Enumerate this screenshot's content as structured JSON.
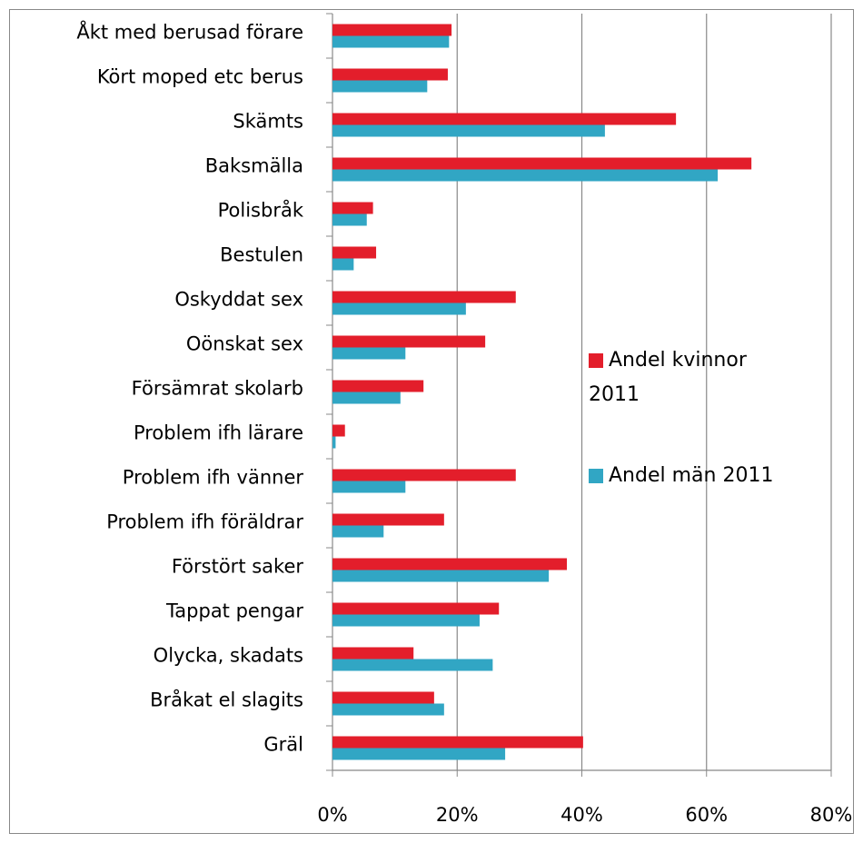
{
  "chart_data": {
    "type": "hbar",
    "categories": [
      "Åkt med berusad förare",
      "Kört moped etc berus",
      "Skämts",
      "Baksmälla",
      "Polisbråk",
      "Bestulen",
      "Oskyddat sex",
      "Oönskat sex",
      "Försämrat skolarb",
      "Problem ifh lärare",
      "Problem ifh vänner",
      "Problem ifh föräldrar",
      "Förstört saker",
      "Tappat pengar",
      "Olycka, skadats",
      "Bråkat el slagits",
      "Gräl"
    ],
    "series": [
      {
        "name": "Andel kvinnor 2011",
        "color": "#e31e2b",
        "values": [
          19.1,
          18.5,
          55.1,
          67.2,
          6.5,
          7.0,
          29.4,
          24.5,
          14.6,
          2.0,
          29.4,
          17.9,
          37.6,
          26.7,
          13.0,
          16.3,
          40.2
        ]
      },
      {
        "name": "Andel män 2011",
        "color": "#31a6c4",
        "values": [
          18.7,
          15.2,
          43.7,
          61.8,
          5.5,
          3.4,
          21.4,
          11.7,
          10.9,
          0.5,
          11.7,
          8.2,
          34.7,
          23.6,
          25.7,
          17.9,
          27.7
        ]
      }
    ],
    "xlim": [
      0,
      80
    ],
    "xticks": [
      {
        "value": 0,
        "label": "0%"
      },
      {
        "value": 20,
        "label": "20%"
      },
      {
        "value": 40,
        "label": "40%"
      },
      {
        "value": 60,
        "label": "60%"
      },
      {
        "value": 80,
        "label": "80%"
      }
    ],
    "grid": true,
    "legend": "right"
  }
}
